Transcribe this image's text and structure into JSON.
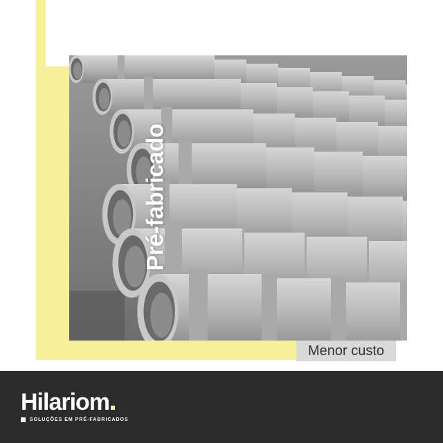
{
  "photo": {
    "title": "Pré-fabricado",
    "tag": "Menor custo"
  },
  "brand": {
    "name": "Hilariom",
    "tagline": "SOLUÇÕES EM PRÉ-FABRICADOS"
  },
  "colors": {
    "accent": "#f7f09a",
    "footer": "#2b2b2b",
    "tag_bg": "#d9d9d9"
  }
}
